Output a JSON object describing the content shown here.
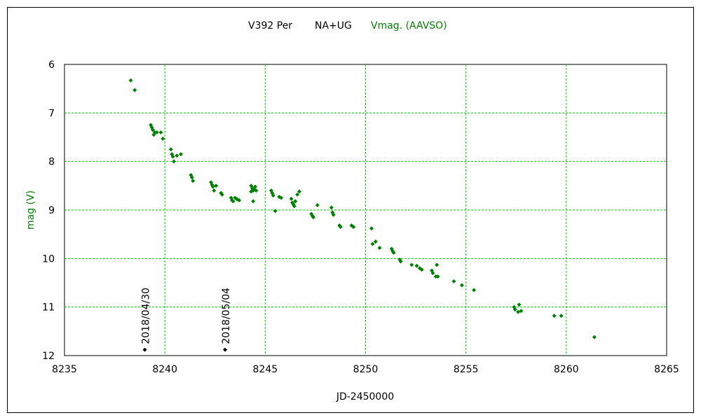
{
  "chart_data": {
    "type": "scatter",
    "title": {
      "star": "V392 Per",
      "type": "NA+UG",
      "series": "Vmag. (AAVSO)"
    },
    "xlabel": "JD-2450000",
    "ylabel": "mag (V)",
    "xlim": [
      8235,
      8265
    ],
    "ylim": [
      6,
      12
    ],
    "y_inverted": true,
    "x_ticks": [
      "8235",
      "8240",
      "8245",
      "8250",
      "8255",
      "8260",
      "8265"
    ],
    "y_ticks": [
      "6",
      "7",
      "8",
      "9",
      "10",
      "11",
      "12"
    ],
    "grid": true,
    "colors": {
      "series": "#008000",
      "grid": "#00cc00",
      "ylabel": "#008000",
      "markers": "#000000"
    },
    "series": [
      {
        "name": "Vmag. (AAVSO)",
        "points": [
          [
            8238.3,
            6.33
          ],
          [
            8238.5,
            6.53
          ],
          [
            8239.3,
            7.25
          ],
          [
            8239.35,
            7.3
          ],
          [
            8239.4,
            7.35
          ],
          [
            8239.5,
            7.4
          ],
          [
            8239.45,
            7.45
          ],
          [
            8239.6,
            7.4
          ],
          [
            8239.8,
            7.4
          ],
          [
            8239.9,
            7.53
          ],
          [
            8240.3,
            7.75
          ],
          [
            8240.35,
            7.85
          ],
          [
            8240.4,
            7.9
          ],
          [
            8240.45,
            8.0
          ],
          [
            8240.6,
            7.88
          ],
          [
            8240.8,
            7.85
          ],
          [
            8241.3,
            8.28
          ],
          [
            8241.35,
            8.33
          ],
          [
            8241.4,
            8.4
          ],
          [
            8242.3,
            8.43
          ],
          [
            8242.35,
            8.48
          ],
          [
            8242.4,
            8.52
          ],
          [
            8242.45,
            8.6
          ],
          [
            8242.55,
            8.5
          ],
          [
            8242.8,
            8.65
          ],
          [
            8242.85,
            8.68
          ],
          [
            8243.3,
            8.75
          ],
          [
            8243.35,
            8.8
          ],
          [
            8243.4,
            8.82
          ],
          [
            8243.5,
            8.75
          ],
          [
            8243.6,
            8.78
          ],
          [
            8243.7,
            8.8
          ],
          [
            8244.3,
            8.5
          ],
          [
            8244.35,
            8.55
          ],
          [
            8244.4,
            8.6
          ],
          [
            8244.3,
            8.62
          ],
          [
            8244.45,
            8.58
          ],
          [
            8244.5,
            8.52
          ],
          [
            8244.55,
            8.6
          ],
          [
            8244.4,
            8.82
          ],
          [
            8245.3,
            8.6
          ],
          [
            8245.35,
            8.65
          ],
          [
            8245.4,
            8.7
          ],
          [
            8245.5,
            9.02
          ],
          [
            8245.7,
            8.73
          ],
          [
            8245.8,
            8.75
          ],
          [
            8246.3,
            8.77
          ],
          [
            8246.35,
            8.85
          ],
          [
            8246.4,
            8.88
          ],
          [
            8246.45,
            8.92
          ],
          [
            8246.5,
            8.82
          ],
          [
            8246.6,
            8.68
          ],
          [
            8246.7,
            8.62
          ],
          [
            8247.3,
            9.08
          ],
          [
            8247.35,
            9.12
          ],
          [
            8247.4,
            9.15
          ],
          [
            8247.6,
            8.9
          ],
          [
            8248.3,
            8.95
          ],
          [
            8248.35,
            9.05
          ],
          [
            8248.4,
            9.1
          ],
          [
            8248.7,
            9.32
          ],
          [
            8248.75,
            9.35
          ],
          [
            8249.3,
            9.32
          ],
          [
            8249.4,
            9.35
          ],
          [
            8250.3,
            9.38
          ],
          [
            8250.35,
            9.7
          ],
          [
            8250.5,
            9.65
          ],
          [
            8250.7,
            9.78
          ],
          [
            8251.3,
            9.8
          ],
          [
            8251.35,
            9.85
          ],
          [
            8251.4,
            9.88
          ],
          [
            8251.7,
            10.02
          ],
          [
            8251.75,
            10.06
          ],
          [
            8252.3,
            10.13
          ],
          [
            8252.55,
            10.15
          ],
          [
            8252.7,
            10.2
          ],
          [
            8252.8,
            10.23
          ],
          [
            8253.3,
            10.25
          ],
          [
            8253.35,
            10.3
          ],
          [
            8253.5,
            10.37
          ],
          [
            8253.55,
            10.13
          ],
          [
            8253.6,
            10.37
          ],
          [
            8254.4,
            10.47
          ],
          [
            8254.8,
            10.55
          ],
          [
            8255.4,
            10.65
          ],
          [
            8257.4,
            11.0
          ],
          [
            8257.45,
            11.05
          ],
          [
            8257.6,
            11.1
          ],
          [
            8257.65,
            10.95
          ],
          [
            8257.75,
            11.08
          ],
          [
            8259.4,
            11.18
          ],
          [
            8259.75,
            11.18
          ],
          [
            8261.4,
            11.62
          ]
        ]
      }
    ],
    "annotations": [
      {
        "text": "2018/04/30",
        "x": 8239.0,
        "y": 11.88
      },
      {
        "text": "2018/05/04",
        "x": 8243.0,
        "y": 11.88
      }
    ]
  }
}
